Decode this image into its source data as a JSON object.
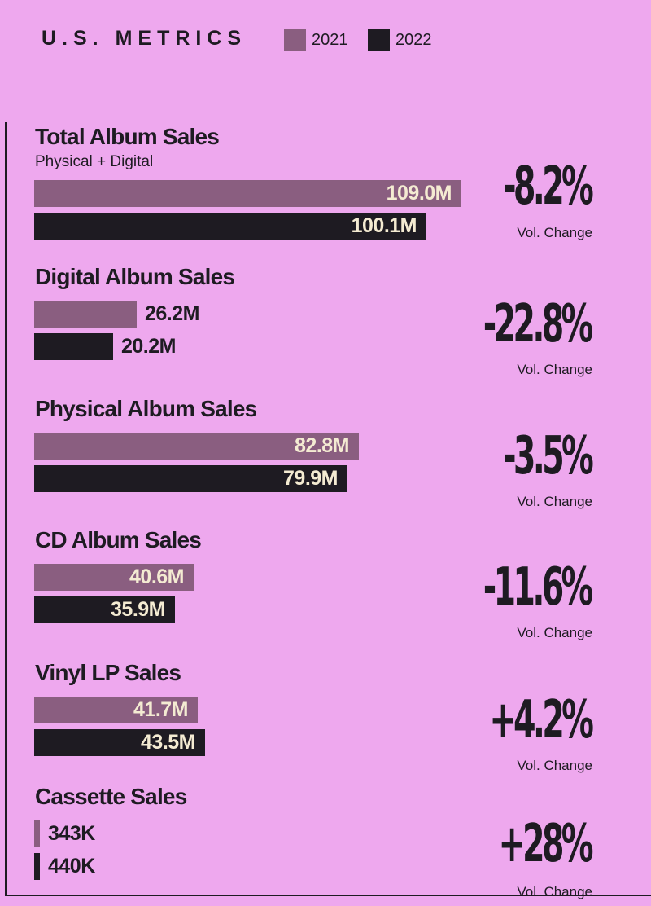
{
  "header": {
    "title": "U.S. METRICS",
    "legend": [
      {
        "label": "2021",
        "color": "#8A5E80"
      },
      {
        "label": "2022",
        "color": "#1E1B22"
      }
    ]
  },
  "colors": {
    "background": "#EEA8EE",
    "bar_2021": "#8A5E80",
    "bar_2022": "#1E1B22",
    "label_on_bar": "#F4EBD2",
    "label_outside": "#1E1B22"
  },
  "chart_data": {
    "type": "bar",
    "orientation": "horizontal",
    "title": "U.S. METRICS",
    "legend_position": "top",
    "series_names": [
      "2021",
      "2022"
    ],
    "metrics": [
      {
        "name": "Total Album Sales",
        "subtitle": "Physical + Digital",
        "values": [
          109.0,
          100.1
        ],
        "labels": [
          "109.0M",
          "100.1M"
        ],
        "change": "-8.2%",
        "change_caption": "Vol. Change"
      },
      {
        "name": "Digital Album Sales",
        "values": [
          26.2,
          20.2
        ],
        "labels": [
          "26.2M",
          "20.2M"
        ],
        "change": "-22.8%",
        "change_caption": "Vol. Change"
      },
      {
        "name": "Physical Album Sales",
        "values": [
          82.8,
          79.9
        ],
        "labels": [
          "82.8M",
          "79.9M"
        ],
        "change": "-3.5%",
        "change_caption": "Vol. Change"
      },
      {
        "name": "CD Album Sales",
        "values": [
          40.6,
          35.9
        ],
        "labels": [
          "40.6M",
          "35.9M"
        ],
        "change": "-11.6%",
        "change_caption": "Vol. Change"
      },
      {
        "name": "Vinyl LP Sales",
        "values": [
          41.7,
          43.5
        ],
        "labels": [
          "41.7M",
          "43.5M"
        ],
        "change": "+4.2%",
        "change_caption": "Vol. Change"
      },
      {
        "name": "Cassette Sales",
        "values": [
          0.343,
          0.44
        ],
        "labels": [
          "343K",
          "440K"
        ],
        "change": "+28%",
        "change_caption": "Vol. Change"
      }
    ]
  }
}
